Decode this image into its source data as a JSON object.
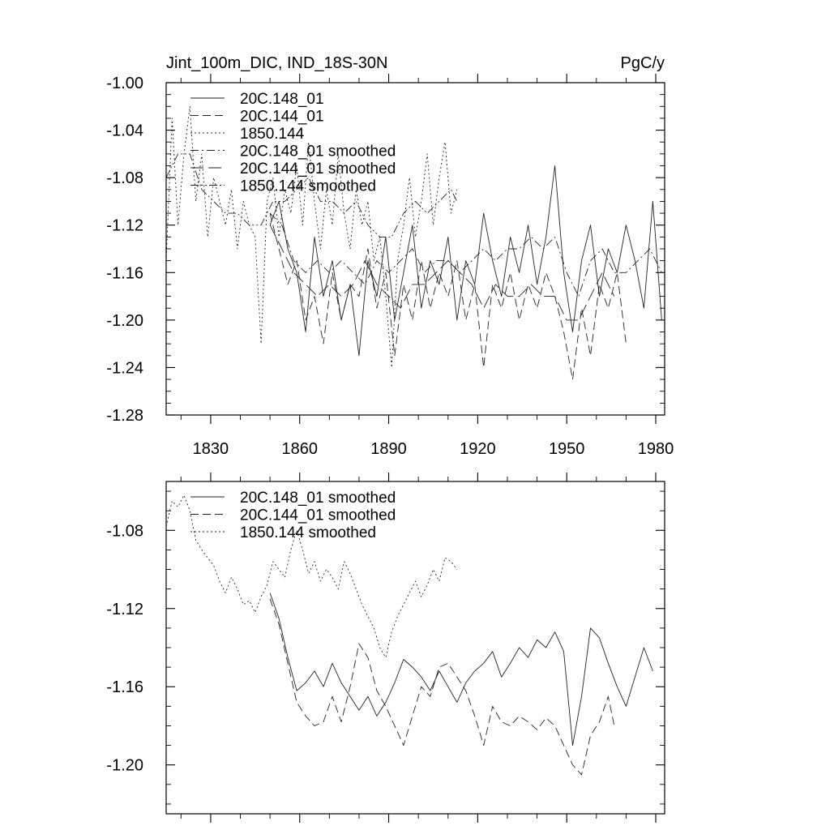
{
  "chart_data": [
    {
      "type": "line",
      "title_left": "Jint_100m_DIC, IND_18S-30N",
      "title_right": "PgC/y",
      "xlim": [
        1815,
        1983
      ],
      "ylim": [
        -1.28,
        -1.0
      ],
      "x_ticks": [
        1830,
        1860,
        1890,
        1920,
        1950,
        1980
      ],
      "x_tick_labels": [
        "1830",
        "1860",
        "1890",
        "1920",
        "1950",
        "1980"
      ],
      "y_ticks": [
        -1.0,
        -1.04,
        -1.08,
        -1.12,
        -1.16,
        -1.2,
        -1.24,
        -1.28
      ],
      "y_tick_labels": [
        "-1.00",
        "-1.04",
        "-1.08",
        "-1.12",
        "-1.16",
        "-1.20",
        "-1.24",
        "-1.28"
      ],
      "legend": [
        "20C.148_01",
        "20C.144_01",
        "1850.144",
        "20C.148_01 smoothed",
        "20C.144_01 smoothed",
        "1850.144 smoothed"
      ],
      "series": [
        {
          "name": "20C.148_01",
          "style": "solid",
          "x": [
            1850,
            1853,
            1856,
            1859,
            1862,
            1865,
            1868,
            1871,
            1874,
            1877,
            1880,
            1883,
            1886,
            1889,
            1892,
            1895,
            1898,
            1901,
            1904,
            1907,
            1910,
            1913,
            1916,
            1919,
            1922,
            1925,
            1928,
            1931,
            1934,
            1937,
            1940,
            1943,
            1946,
            1949,
            1952,
            1955,
            1958,
            1961,
            1964,
            1967,
            1970,
            1973,
            1976,
            1979,
            1982
          ],
          "values": [
            -1.12,
            -1.1,
            -1.14,
            -1.16,
            -1.21,
            -1.13,
            -1.18,
            -1.15,
            -1.2,
            -1.17,
            -1.23,
            -1.15,
            -1.18,
            -1.13,
            -1.2,
            -1.16,
            -1.12,
            -1.19,
            -1.15,
            -1.17,
            -1.13,
            -1.2,
            -1.15,
            -1.17,
            -1.11,
            -1.15,
            -1.18,
            -1.13,
            -1.16,
            -1.12,
            -1.17,
            -1.13,
            -1.07,
            -1.16,
            -1.21,
            -1.15,
            -1.12,
            -1.18,
            -1.14,
            -1.16,
            -1.12,
            -1.15,
            -1.19,
            -1.1,
            -1.2
          ]
        },
        {
          "name": "20C.144_01",
          "style": "dashed",
          "x": [
            1850,
            1853,
            1856,
            1859,
            1862,
            1865,
            1868,
            1871,
            1874,
            1877,
            1880,
            1883,
            1886,
            1889,
            1892,
            1895,
            1898,
            1901,
            1904,
            1907,
            1910,
            1913,
            1916,
            1919,
            1922,
            1925,
            1928,
            1931,
            1934,
            1937,
            1940,
            1943,
            1946,
            1949,
            1952,
            1955,
            1958,
            1961,
            1964,
            1967,
            1970
          ],
          "values": [
            -1.11,
            -1.14,
            -1.17,
            -1.15,
            -1.2,
            -1.18,
            -1.22,
            -1.16,
            -1.2,
            -1.17,
            -1.18,
            -1.14,
            -1.19,
            -1.16,
            -1.23,
            -1.17,
            -1.2,
            -1.15,
            -1.19,
            -1.16,
            -1.18,
            -1.15,
            -1.2,
            -1.17,
            -1.24,
            -1.17,
            -1.19,
            -1.16,
            -1.2,
            -1.17,
            -1.19,
            -1.16,
            -1.18,
            -1.21,
            -1.25,
            -1.19,
            -1.23,
            -1.17,
            -1.19,
            -1.16,
            -1.22
          ]
        },
        {
          "name": "1850.144",
          "style": "dotted",
          "x": [
            1815,
            1817,
            1819,
            1821,
            1823,
            1825,
            1827,
            1829,
            1831,
            1833,
            1835,
            1837,
            1839,
            1841,
            1843,
            1845,
            1847,
            1849,
            1851,
            1853,
            1855,
            1857,
            1859,
            1861,
            1863,
            1865,
            1867,
            1869,
            1871,
            1873,
            1875,
            1877,
            1879,
            1881,
            1883,
            1885,
            1887,
            1889,
            1891,
            1893,
            1895,
            1897,
            1899,
            1901,
            1903,
            1905,
            1907,
            1909,
            1911,
            1913
          ],
          "values": [
            -1.15,
            -1.03,
            -1.12,
            -1.06,
            -1.02,
            -1.1,
            -1.06,
            -1.13,
            -1.08,
            -1.1,
            -1.12,
            -1.09,
            -1.14,
            -1.1,
            -1.12,
            -1.13,
            -1.22,
            -1.1,
            -1.08,
            -1.13,
            -1.09,
            -1.11,
            -1.07,
            -1.12,
            -1.05,
            -1.1,
            -1.14,
            -1.09,
            -1.12,
            -1.06,
            -1.11,
            -1.14,
            -1.09,
            -1.12,
            -1.1,
            -1.15,
            -1.13,
            -1.18,
            -1.24,
            -1.15,
            -1.12,
            -1.08,
            -1.13,
            -1.1,
            -1.06,
            -1.12,
            -1.08,
            -1.05,
            -1.11,
            -1.09
          ]
        },
        {
          "name": "20C.148_01 smoothed",
          "style": "dashdot",
          "x": [
            1850,
            1854,
            1858,
            1862,
            1866,
            1870,
            1874,
            1878,
            1882,
            1886,
            1890,
            1894,
            1898,
            1902,
            1906,
            1910,
            1914,
            1918,
            1922,
            1926,
            1930,
            1934,
            1938,
            1942,
            1946,
            1950,
            1954,
            1958,
            1962,
            1966,
            1970,
            1974,
            1978,
            1982
          ],
          "values": [
            -1.11,
            -1.12,
            -1.15,
            -1.16,
            -1.15,
            -1.16,
            -1.15,
            -1.16,
            -1.17,
            -1.15,
            -1.16,
            -1.15,
            -1.14,
            -1.16,
            -1.15,
            -1.15,
            -1.16,
            -1.15,
            -1.14,
            -1.15,
            -1.14,
            -1.14,
            -1.13,
            -1.14,
            -1.13,
            -1.16,
            -1.18,
            -1.15,
            -1.14,
            -1.16,
            -1.16,
            -1.15,
            -1.14,
            -1.16
          ]
        },
        {
          "name": "20C.144_01 smoothed",
          "style": "longdash",
          "x": [
            1850,
            1854,
            1858,
            1862,
            1866,
            1870,
            1874,
            1878,
            1882,
            1886,
            1890,
            1894,
            1898,
            1902,
            1906,
            1910,
            1914,
            1918,
            1922,
            1926,
            1930,
            1934,
            1938,
            1942,
            1946,
            1950,
            1954,
            1958,
            1962,
            1966
          ],
          "values": [
            -1.12,
            -1.14,
            -1.16,
            -1.17,
            -1.18,
            -1.17,
            -1.18,
            -1.17,
            -1.15,
            -1.17,
            -1.18,
            -1.19,
            -1.17,
            -1.17,
            -1.16,
            -1.15,
            -1.16,
            -1.17,
            -1.19,
            -1.17,
            -1.18,
            -1.18,
            -1.17,
            -1.18,
            -1.18,
            -1.2,
            -1.2,
            -1.18,
            -1.16,
            -1.18
          ]
        },
        {
          "name": "1850.144 smoothed",
          "style": "dashdotdot",
          "x": [
            1815,
            1819,
            1823,
            1827,
            1831,
            1835,
            1839,
            1843,
            1847,
            1851,
            1855,
            1859,
            1863,
            1867,
            1871,
            1875,
            1879,
            1883,
            1887,
            1891,
            1895,
            1899,
            1903,
            1907,
            1911,
            1913
          ],
          "values": [
            -1.08,
            -1.06,
            -1.06,
            -1.09,
            -1.1,
            -1.11,
            -1.11,
            -1.12,
            -1.12,
            -1.1,
            -1.1,
            -1.09,
            -1.08,
            -1.1,
            -1.1,
            -1.11,
            -1.1,
            -1.12,
            -1.13,
            -1.13,
            -1.11,
            -1.1,
            -1.11,
            -1.1,
            -1.09,
            -1.1
          ]
        }
      ]
    },
    {
      "type": "line",
      "xlim": [
        1815,
        1983
      ],
      "ylim": [
        -1.225,
        -1.055
      ],
      "x_ticks": [
        1830,
        1860,
        1890,
        1920,
        1950,
        1980
      ],
      "y_ticks": [
        -1.08,
        -1.12,
        -1.16,
        -1.2
      ],
      "y_tick_labels": [
        "-1.08",
        "-1.12",
        "-1.16",
        "-1.20"
      ],
      "legend": [
        "20C.148_01 smoothed",
        "20C.144_01 smoothed",
        "1850.144 smoothed"
      ],
      "series": [
        {
          "name": "20C.148_01 smoothed",
          "style": "solid",
          "x": [
            1850,
            1853,
            1856,
            1859,
            1862,
            1865,
            1868,
            1871,
            1874,
            1877,
            1880,
            1883,
            1886,
            1889,
            1892,
            1895,
            1898,
            1901,
            1904,
            1907,
            1910,
            1913,
            1916,
            1919,
            1922,
            1925,
            1928,
            1931,
            1934,
            1937,
            1940,
            1943,
            1946,
            1949,
            1952,
            1955,
            1958,
            1961,
            1964,
            1967,
            1970,
            1973,
            1976,
            1979
          ],
          "values": [
            -1.112,
            -1.125,
            -1.145,
            -1.162,
            -1.158,
            -1.152,
            -1.16,
            -1.148,
            -1.158,
            -1.165,
            -1.172,
            -1.165,
            -1.175,
            -1.168,
            -1.158,
            -1.146,
            -1.15,
            -1.155,
            -1.162,
            -1.152,
            -1.16,
            -1.168,
            -1.158,
            -1.152,
            -1.148,
            -1.142,
            -1.155,
            -1.148,
            -1.14,
            -1.145,
            -1.136,
            -1.14,
            -1.132,
            -1.142,
            -1.19,
            -1.165,
            -1.13,
            -1.135,
            -1.148,
            -1.16,
            -1.17,
            -1.155,
            -1.14,
            -1.152
          ]
        },
        {
          "name": "20C.144_01 smoothed",
          "style": "dashed",
          "x": [
            1850,
            1853,
            1856,
            1859,
            1862,
            1865,
            1868,
            1871,
            1874,
            1877,
            1880,
            1883,
            1886,
            1889,
            1892,
            1895,
            1898,
            1901,
            1904,
            1907,
            1910,
            1913,
            1916,
            1919,
            1922,
            1925,
            1928,
            1931,
            1934,
            1937,
            1940,
            1943,
            1946,
            1949,
            1952,
            1955,
            1958,
            1961,
            1964,
            1966
          ],
          "values": [
            -1.115,
            -1.128,
            -1.148,
            -1.168,
            -1.175,
            -1.18,
            -1.178,
            -1.165,
            -1.178,
            -1.16,
            -1.138,
            -1.145,
            -1.162,
            -1.17,
            -1.18,
            -1.19,
            -1.175,
            -1.16,
            -1.165,
            -1.15,
            -1.148,
            -1.155,
            -1.162,
            -1.175,
            -1.19,
            -1.17,
            -1.178,
            -1.18,
            -1.175,
            -1.178,
            -1.182,
            -1.176,
            -1.18,
            -1.19,
            -1.2,
            -1.205,
            -1.185,
            -1.178,
            -1.165,
            -1.18
          ]
        },
        {
          "name": "1850.144 smoothed",
          "style": "dotted",
          "x": [
            1815,
            1817,
            1819,
            1821,
            1823,
            1825,
            1827,
            1829,
            1831,
            1833,
            1835,
            1837,
            1839,
            1841,
            1843,
            1845,
            1847,
            1849,
            1851,
            1853,
            1855,
            1857,
            1859,
            1861,
            1863,
            1865,
            1867,
            1869,
            1871,
            1873,
            1875,
            1877,
            1879,
            1881,
            1883,
            1885,
            1887,
            1889,
            1891,
            1893,
            1895,
            1897,
            1899,
            1901,
            1903,
            1905,
            1907,
            1909,
            1911,
            1913
          ],
          "values": [
            -1.078,
            -1.065,
            -1.068,
            -1.062,
            -1.07,
            -1.085,
            -1.09,
            -1.094,
            -1.098,
            -1.106,
            -1.112,
            -1.104,
            -1.11,
            -1.118,
            -1.116,
            -1.122,
            -1.114,
            -1.108,
            -1.096,
            -1.1,
            -1.104,
            -1.09,
            -1.08,
            -1.09,
            -1.102,
            -1.096,
            -1.106,
            -1.1,
            -1.104,
            -1.11,
            -1.096,
            -1.102,
            -1.11,
            -1.118,
            -1.124,
            -1.13,
            -1.14,
            -1.145,
            -1.132,
            -1.124,
            -1.118,
            -1.112,
            -1.106,
            -1.114,
            -1.108,
            -1.1,
            -1.106,
            -1.094,
            -1.096,
            -1.1
          ]
        }
      ]
    }
  ]
}
